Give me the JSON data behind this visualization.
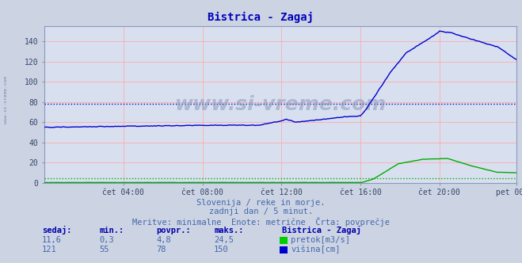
{
  "title": "Bistrica - Zagaj",
  "bg_color": "#ccd4e4",
  "plot_bg_color": "#d8e0f0",
  "grid_color": "#ffaaaa",
  "xlabel_labels": [
    "čet 04:00",
    "čet 08:00",
    "čet 12:00",
    "čet 16:00",
    "čet 20:00",
    "pet 00:00"
  ],
  "xlabel_ticks": [
    48,
    96,
    144,
    192,
    240,
    287
  ],
  "total_points": 288,
  "ylim": [
    0,
    155
  ],
  "yticks": [
    0,
    20,
    40,
    60,
    80,
    100,
    120,
    140
  ],
  "visina_color": "#0000cc",
  "pretok_color": "#00aa00",
  "avg_visina": 78,
  "avg_pretok": 4.8,
  "subtitle1": "Slovenija / reke in morje.",
  "subtitle2": "zadnji dan / 5 minut.",
  "subtitle3": "Meritve: minimalne  Enote: metrične  Črta: povprečje",
  "legend_title": "Bistrica - Zagaj",
  "legend_entries": [
    "pretok[m3/s]",
    "višina[cm]"
  ],
  "table_headers": [
    "sedaj:",
    "min.:",
    "povpr.:",
    "maks.:"
  ],
  "table_pretok": [
    "11,6",
    "0,3",
    "4,8",
    "24,5"
  ],
  "table_visina": [
    "121",
    "55",
    "78",
    "150"
  ],
  "watermark": "www.si-vreme.com",
  "left_label": "www.si-vreme.com",
  "pretok_color_icon": "#00cc00",
  "visina_color_icon": "#0000cc"
}
